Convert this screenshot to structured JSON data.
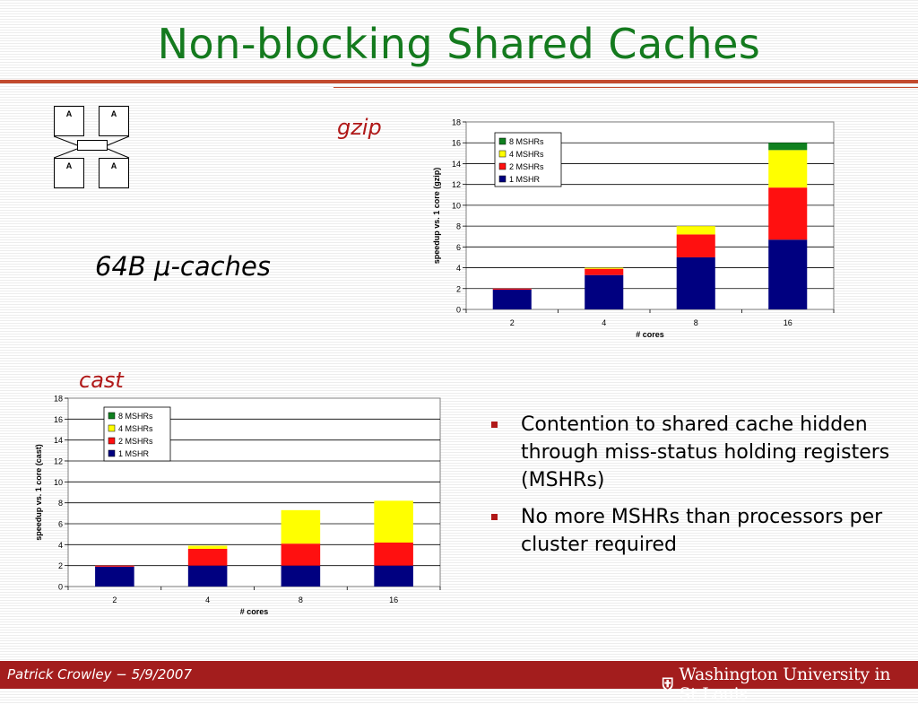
{
  "slide": {
    "title": "Non-blocking Shared Caches",
    "gzip_label": "gzip",
    "cast_label": "cast",
    "caches_label": "64B  μ-caches",
    "diagram_box_label": "A"
  },
  "bullets": [
    "Contention to shared cache hidden through miss-status holding registers (MSHRs)",
    "No more MSHRs than processors per cluster required"
  ],
  "footer": {
    "author": "Patrick Crowley − 5/9/2007",
    "university": "Washington University in St.Louis"
  },
  "colors": {
    "title": "#147a1e",
    "accent": "#c24a2e",
    "footer_bg": "#a31d1d",
    "mshr8": "#108020",
    "mshr4": "#ffff00",
    "mshr2": "#ff1010",
    "mshr1": "#000080"
  },
  "chart_data": [
    {
      "type": "bar",
      "stacked": true,
      "chart_id": "gzip",
      "categories": [
        "2",
        "4",
        "8",
        "16"
      ],
      "series": [
        {
          "name": "1 MSHR",
          "values": [
            1.9,
            3.3,
            5.0,
            6.7
          ]
        },
        {
          "name": "2 MSHRs",
          "values": [
            0.1,
            0.6,
            2.2,
            5.0
          ]
        },
        {
          "name": "4 MSHRs",
          "values": [
            0.0,
            0.1,
            0.8,
            3.6
          ]
        },
        {
          "name": "8 MSHRs",
          "values": [
            0.0,
            0.0,
            0.0,
            0.7
          ]
        }
      ],
      "legend_order": [
        "8 MSHRs",
        "4 MSHRs",
        "2 MSHRs",
        "1 MSHR"
      ],
      "ylabel": "speedup vs. 1 core (gzip)",
      "xlabel": "# cores",
      "ylim": [
        0,
        18
      ],
      "yticks": [
        0,
        2,
        4,
        6,
        8,
        10,
        12,
        14,
        16,
        18
      ],
      "grid": true,
      "legend_position": "top-left"
    },
    {
      "type": "bar",
      "stacked": true,
      "chart_id": "cast",
      "categories": [
        "2",
        "4",
        "8",
        "16"
      ],
      "series": [
        {
          "name": "1 MSHR",
          "values": [
            1.9,
            2.0,
            2.0,
            2.0
          ]
        },
        {
          "name": "2 MSHRs",
          "values": [
            0.1,
            1.6,
            2.1,
            2.2
          ]
        },
        {
          "name": "4 MSHRs",
          "values": [
            0.0,
            0.3,
            3.2,
            4.0
          ]
        },
        {
          "name": "8 MSHRs",
          "values": [
            0.0,
            0.0,
            0.0,
            0.0
          ]
        }
      ],
      "legend_order": [
        "8 MSHRs",
        "4 MSHRs",
        "2 MSHRs",
        "1 MSHR"
      ],
      "ylabel": "speedup vs. 1 core (cast)",
      "xlabel": "# cores",
      "ylim": [
        0,
        18
      ],
      "yticks": [
        0,
        2,
        4,
        6,
        8,
        10,
        12,
        14,
        16,
        18
      ],
      "grid": true,
      "legend_position": "top-left"
    }
  ]
}
